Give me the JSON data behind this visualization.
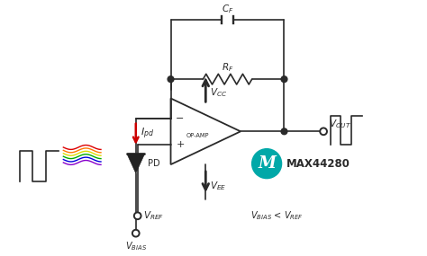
{
  "bg_color": "#ffffff",
  "line_color": "#2a2a2a",
  "red_color": "#cc0000",
  "teal_color": "#00a8a8",
  "ray_colors": [
    "#dd0000",
    "#ff7700",
    "#dddd00",
    "#00aa00",
    "#0000dd",
    "#8800cc"
  ],
  "labels": {
    "CF": "$C_F$",
    "RF": "$R_F$",
    "VCC": "$V_{CC}$",
    "VEE": "$V_{EE}$",
    "VOUT": "$V_{OUT}$",
    "VREF": "$V_{REF}$",
    "VBIAS": "$V_{BIAS}$",
    "Ipd": "$I_{pd}$",
    "PD": "PD",
    "OPAMP": "OP-AMP",
    "MAX44280": "MAX44280",
    "condition": "$V_{BIAS}$ < $V_{REF}$"
  }
}
